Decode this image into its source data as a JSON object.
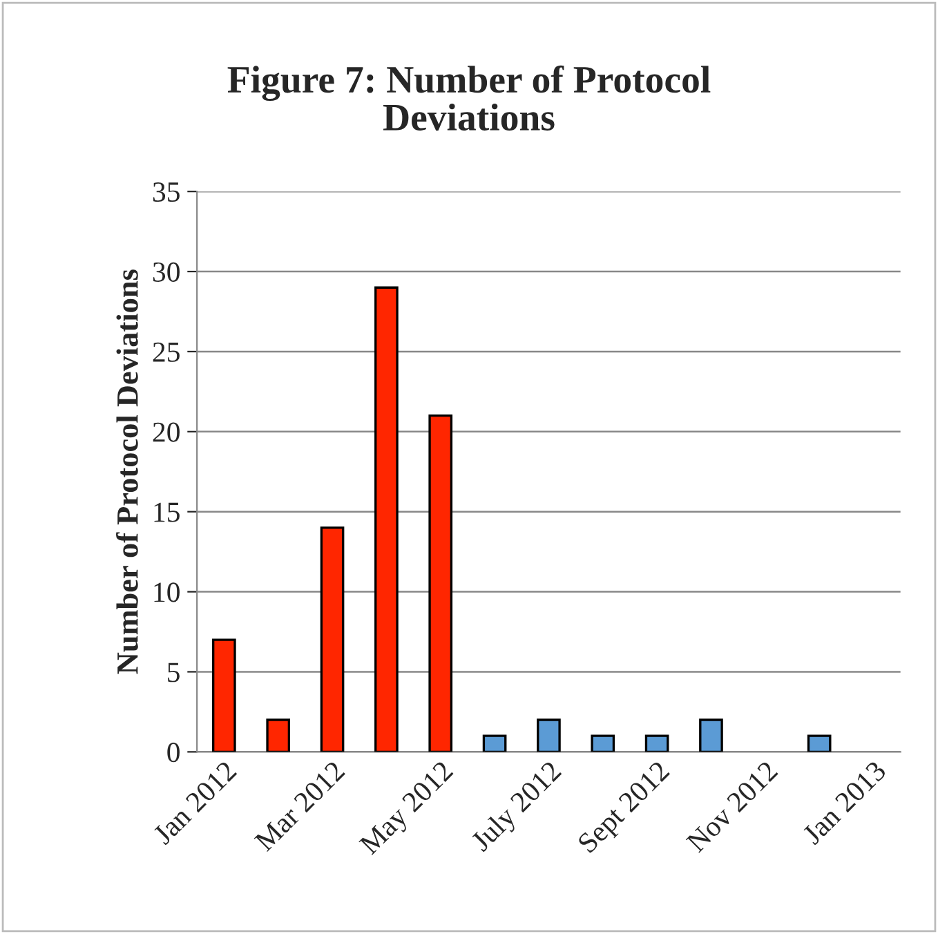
{
  "chart_data": {
    "type": "bar",
    "title": "Figure 7: Number of Protocol\nDeviations",
    "ylabel": "Number of Protocol Deviations",
    "categories": [
      "Jan 2012",
      null,
      "Mar 2012",
      null,
      "May 2012",
      null,
      "July 2012",
      null,
      "Sept 2012",
      null,
      "Nov 2012",
      null,
      "Jan 2013"
    ],
    "values": [
      7,
      2,
      14,
      29,
      21,
      1,
      2,
      1,
      1,
      2,
      null,
      1,
      null
    ],
    "colors": [
      "#ff2600",
      "#ff2600",
      "#ff2600",
      "#ff2600",
      "#ff2600",
      "#5b9bd5",
      "#5b9bd5",
      "#5b9bd5",
      "#5b9bd5",
      "#5b9bd5",
      null,
      "#5b9bd5",
      null
    ],
    "ylim": [
      0,
      35
    ],
    "yticks": [
      0,
      5,
      10,
      15,
      20,
      25,
      30,
      35
    ],
    "grid": "y"
  }
}
